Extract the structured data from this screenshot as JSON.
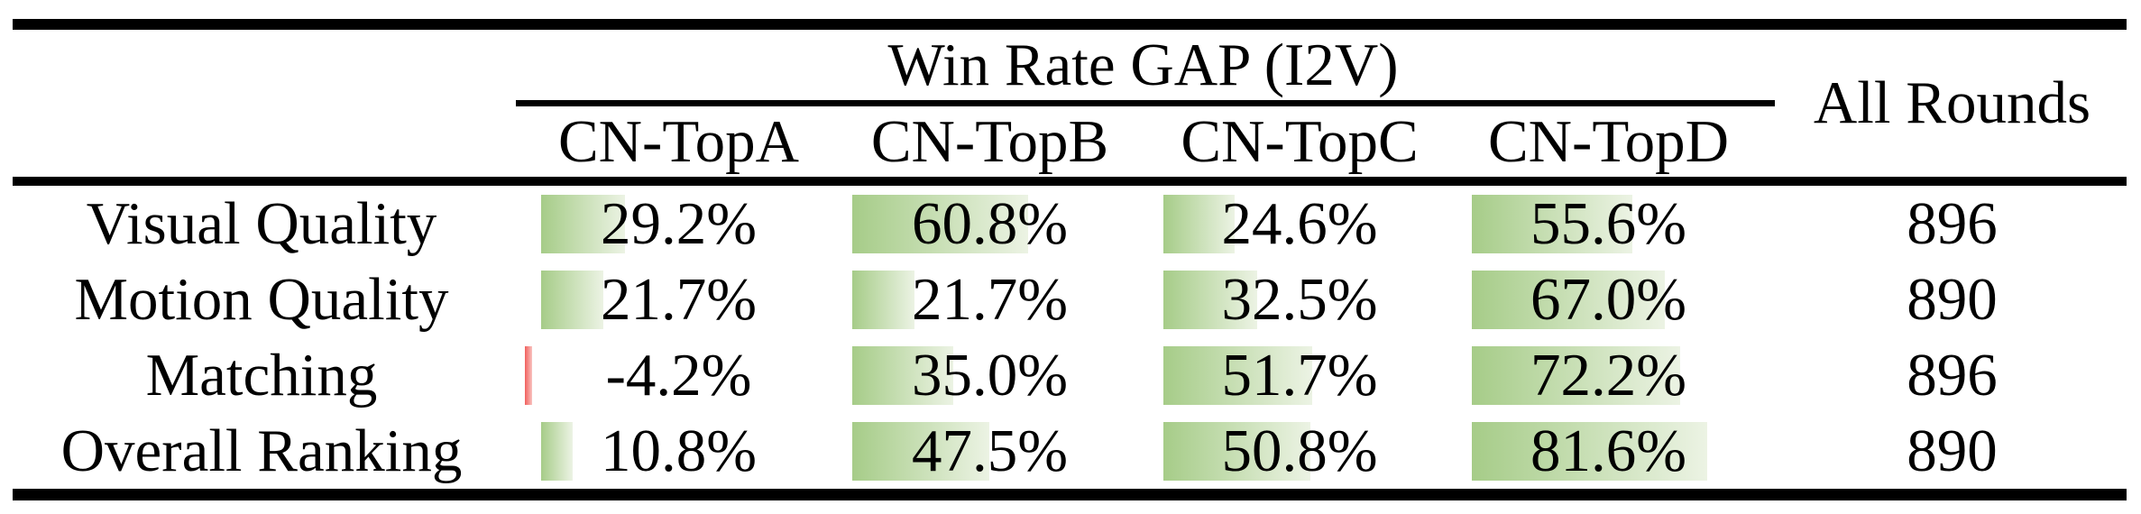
{
  "table": {
    "group_header": "Win Rate GAP (I2V)",
    "all_rounds_header": "All Rounds",
    "columns": [
      "CN-TopA",
      "CN-TopB",
      "CN-TopC",
      "CN-TopD"
    ],
    "rows": [
      {
        "label": "Visual Quality",
        "values": [
          29.2,
          60.8,
          24.6,
          55.6
        ],
        "display": [
          "29.2%",
          "60.8%",
          "24.6%",
          "55.6%"
        ],
        "all_rounds": "896"
      },
      {
        "label": "Motion Quality",
        "values": [
          21.7,
          21.7,
          32.5,
          67.0
        ],
        "display": [
          "21.7%",
          "21.7%",
          "32.5%",
          "67.0%"
        ],
        "all_rounds": "890"
      },
      {
        "label": "Matching",
        "values": [
          -4.2,
          35.0,
          51.7,
          72.2
        ],
        "display": [
          "-4.2%",
          "35.0%",
          "51.7%",
          "72.2%"
        ],
        "all_rounds": "896"
      },
      {
        "label": "Overall Ranking",
        "values": [
          10.8,
          47.5,
          50.8,
          81.6
        ],
        "display": [
          "10.8%",
          "47.5%",
          "50.8%",
          "81.6%"
        ],
        "all_rounds": "890"
      }
    ]
  },
  "colors": {
    "bar_positive_start": "#a6cc88",
    "bar_positive_end": "#ecf3e4",
    "bar_negative_start": "#f15f5c",
    "bar_negative_end": "#f9c3c0",
    "rule_color": "#000000",
    "text_color": "#000000",
    "background": "#ffffff"
  },
  "chart_data": {
    "type": "table",
    "title": "Win Rate GAP (I2V)",
    "columns": [
      "",
      "CN-TopA",
      "CN-TopB",
      "CN-TopC",
      "CN-TopD",
      "All Rounds"
    ],
    "rows": [
      [
        "Visual Quality",
        29.2,
        60.8,
        24.6,
        55.6,
        896
      ],
      [
        "Motion Quality",
        21.7,
        21.7,
        32.5,
        67.0,
        890
      ],
      [
        "Matching",
        -4.2,
        35.0,
        51.7,
        72.2,
        896
      ],
      [
        "Overall Ranking",
        10.8,
        47.5,
        50.8,
        81.6,
        890
      ]
    ],
    "unit": "%",
    "notes": "Percentage cells contain left-anchored green gradient data bars proportional to value; the single negative value (-4.2%) has a thin red bar. 'All Rounds' column holds round counts.",
    "value_range_for_bars": [
      0,
      100
    ]
  }
}
